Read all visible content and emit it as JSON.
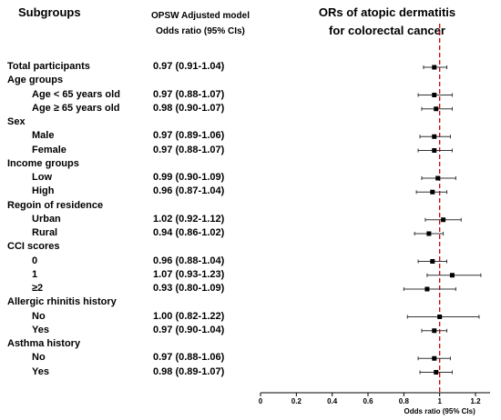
{
  "headers": {
    "subgroups": "Subgroups",
    "model_line1": "OPSW Adjusted model",
    "model_line2": "Odds ratio (95% CIs)",
    "title_line1": "ORs of atopic dermatitis",
    "title_line2": "for colorectal cancer"
  },
  "rows": [
    {
      "label": "Total participants",
      "value": "0.97 (0.91-1.04)",
      "level": "group"
    },
    {
      "label": "Age groups",
      "value": "",
      "level": "group"
    },
    {
      "label": "Age < 65 years old",
      "value": "0.97 (0.88-1.07)",
      "level": "sub"
    },
    {
      "label": "Age ≥ 65 years old",
      "value": "0.98 (0.90-1.07)",
      "level": "sub"
    },
    {
      "label": "Sex",
      "value": "",
      "level": "group"
    },
    {
      "label": "Male",
      "value": "0.97 (0.89-1.06)",
      "level": "sub"
    },
    {
      "label": "Female",
      "value": "0.97 (0.88-1.07)",
      "level": "sub"
    },
    {
      "label": "Income groups",
      "value": "",
      "level": "group"
    },
    {
      "label": "Low",
      "value": "0.99 (0.90-1.09)",
      "level": "sub"
    },
    {
      "label": "High",
      "value": "0.96 (0.87-1.04)",
      "level": "sub"
    },
    {
      "label": "Regoin of residence",
      "value": "",
      "level": "group"
    },
    {
      "label": "Urban",
      "value": "1.02 (0.92-1.12)",
      "level": "sub"
    },
    {
      "label": "Rural",
      "value": "0.94 (0.86-1.02)",
      "level": "sub"
    },
    {
      "label": "CCI scores",
      "value": "",
      "level": "group"
    },
    {
      "label": "0",
      "value": "0.96 (0.88-1.04)",
      "level": "sub"
    },
    {
      "label": "1",
      "value": "1.07 (0.93-1.23)",
      "level": "sub"
    },
    {
      "label": "≥2",
      "value": "0.93 (0.80-1.09)",
      "level": "sub"
    },
    {
      "label": "Allergic rhinitis history",
      "value": "",
      "level": "group"
    },
    {
      "label": "No",
      "value": "1.00 (0.82-1.22)",
      "level": "sub"
    },
    {
      "label": "Yes",
      "value": "0.97 (0.90-1.04)",
      "level": "sub"
    },
    {
      "label": "Asthma history",
      "value": "",
      "level": "group"
    },
    {
      "label": "No",
      "value": "0.97 (0.88-1.06)",
      "level": "sub"
    },
    {
      "label": "Yes",
      "value": "0.98 (0.89-1.07)",
      "level": "sub"
    }
  ],
  "chart_data": {
    "type": "scatter",
    "subtype": "forest",
    "title": "ORs of atopic dermatitis for colorectal cancer",
    "xlabel": "Odds ratio (95% CIs)",
    "xlim": [
      0,
      1.3
    ],
    "xticks": [
      0,
      0.2,
      0.4,
      0.6,
      0.8,
      1,
      1.2
    ],
    "xtick_labels": [
      "0",
      "0.2",
      "0.4",
      "0.6",
      "0.8",
      "1",
      "1.2"
    ],
    "reference_line": {
      "x": 1,
      "color": "#cc0000",
      "style": "dashed"
    },
    "points": [
      {
        "label": "Total participants",
        "or": 0.97,
        "lo": 0.91,
        "hi": 1.04
      },
      {
        "label": "Age < 65 years old",
        "or": 0.97,
        "lo": 0.88,
        "hi": 1.07
      },
      {
        "label": "Age ≥ 65 years old",
        "or": 0.98,
        "lo": 0.9,
        "hi": 1.07
      },
      {
        "label": "Male",
        "or": 0.97,
        "lo": 0.89,
        "hi": 1.06
      },
      {
        "label": "Female",
        "or": 0.97,
        "lo": 0.88,
        "hi": 1.07
      },
      {
        "label": "Low",
        "or": 0.99,
        "lo": 0.9,
        "hi": 1.09
      },
      {
        "label": "High",
        "or": 0.96,
        "lo": 0.87,
        "hi": 1.04
      },
      {
        "label": "Urban",
        "or": 1.02,
        "lo": 0.92,
        "hi": 1.12
      },
      {
        "label": "Rural",
        "or": 0.94,
        "lo": 0.86,
        "hi": 1.02
      },
      {
        "label": "0",
        "or": 0.96,
        "lo": 0.88,
        "hi": 1.04
      },
      {
        "label": "1",
        "or": 1.07,
        "lo": 0.93,
        "hi": 1.23
      },
      {
        "label": "≥2",
        "or": 0.93,
        "lo": 0.8,
        "hi": 1.09
      },
      {
        "label": "No",
        "or": 1.0,
        "lo": 0.82,
        "hi": 1.22
      },
      {
        "label": "Yes",
        "or": 0.97,
        "lo": 0.9,
        "hi": 1.04
      },
      {
        "label": "No",
        "or": 0.97,
        "lo": 0.88,
        "hi": 1.06
      },
      {
        "label": "Yes",
        "or": 0.98,
        "lo": 0.89,
        "hi": 1.07
      }
    ]
  }
}
